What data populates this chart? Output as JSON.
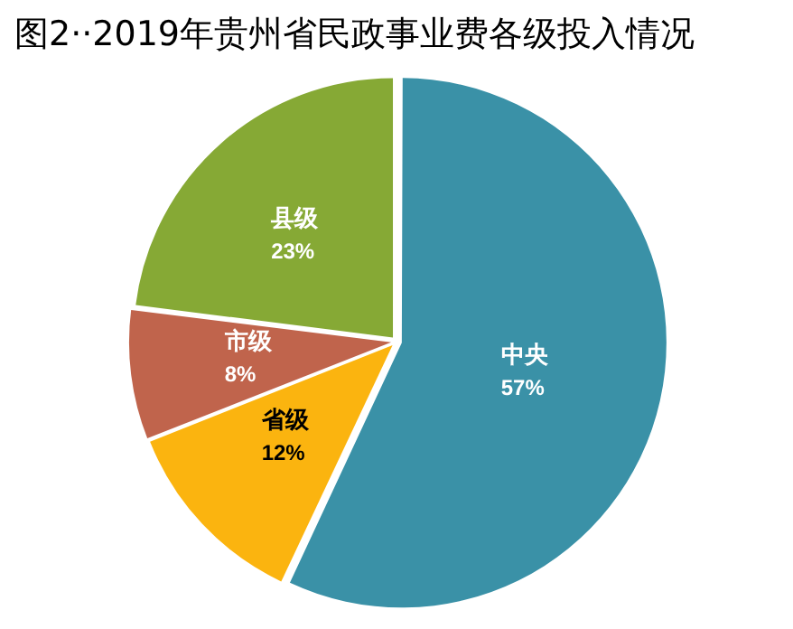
{
  "chart_data": {
    "type": "pie",
    "title": "图2··2019年贵州省民政事业费各级投入情况",
    "categories": [
      "中央",
      "省级",
      "市级",
      "县级"
    ],
    "values": [
      57,
      12,
      8,
      23
    ],
    "colors": [
      "#3a91a7",
      "#fbb40f",
      "#c0644c",
      "#86a935"
    ],
    "value_labels": [
      "57%",
      "12%",
      "8%",
      "23%"
    ],
    "legend": false
  }
}
